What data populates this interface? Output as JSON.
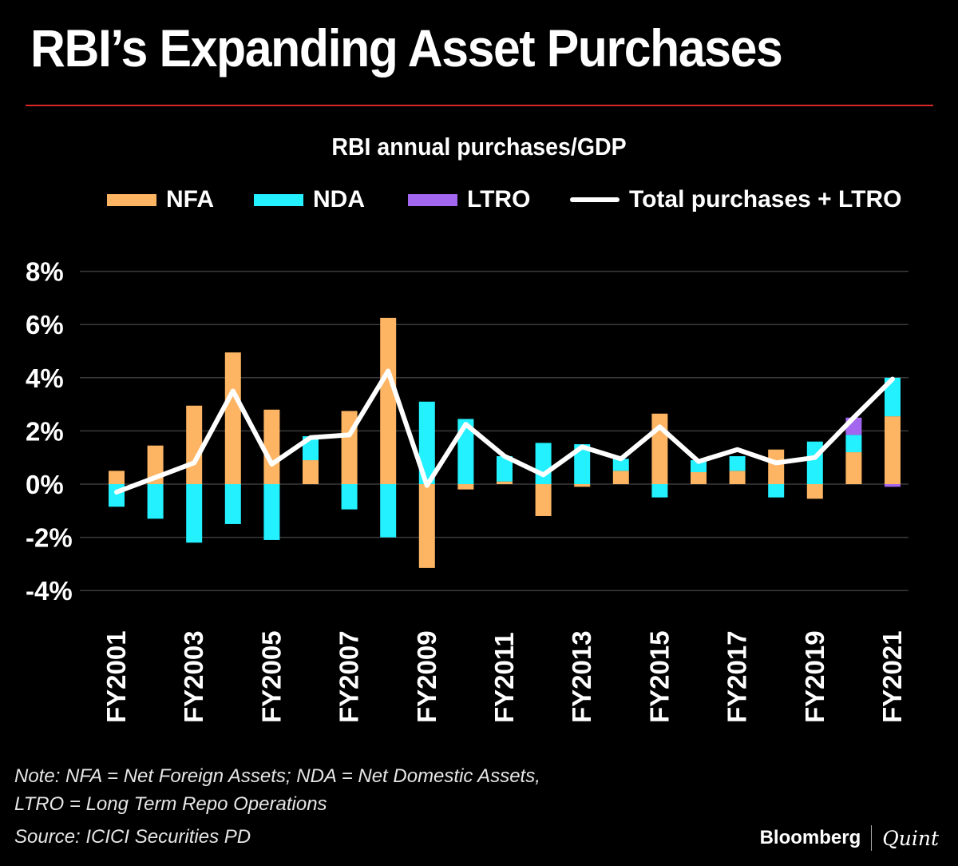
{
  "header": {
    "title": "RBI’s Expanding Asset Purchases"
  },
  "legend": {
    "nfa": "NFA",
    "nda": "NDA",
    "ltro": "LTRO",
    "total": "Total purchases + LTRO"
  },
  "colors": {
    "nfa": "#fdb563",
    "nda": "#23f1ff",
    "ltro": "#a366ee",
    "total": "#ffffff",
    "grid": "#3a3a3a",
    "accent_rule": "#d8262b"
  },
  "footer": {
    "note_line1": "Note: NFA = Net Foreign Assets; NDA = Net Domestic Assets,",
    "note_line2": "LTRO = Long Term Repo Operations",
    "source": "Source: ICICI Securities PD",
    "brand_a": "Bloomberg",
    "brand_b": "Quint"
  },
  "chart_data": {
    "type": "bar",
    "stacked": true,
    "title": "RBI annual purchases/GDP",
    "xlabel": "",
    "ylabel": "",
    "ylim": [
      -4,
      8
    ],
    "yticks": [
      8,
      6,
      4,
      2,
      0,
      -2,
      -4
    ],
    "ytick_labels": [
      "8%",
      "6%",
      "4%",
      "2%",
      "0%",
      "-2%",
      "-4%"
    ],
    "categories": [
      "FY2001",
      "FY2002",
      "FY2003",
      "FY2004",
      "FY2005",
      "FY2006",
      "FY2007",
      "FY2008",
      "FY2009",
      "FY2010",
      "FY2011",
      "FY2012",
      "FY2013",
      "FY2014",
      "FY2015",
      "FY2016",
      "FY2017",
      "FY2018",
      "FY2019",
      "FY2020",
      "FY2021"
    ],
    "xtick_labels": [
      "FY2001",
      "",
      "FY2003",
      "",
      "FY2005",
      "",
      "FY2007",
      "",
      "FY2009",
      "",
      "FY2011",
      "",
      "FY2013",
      "",
      "FY2015",
      "",
      "FY2017",
      "",
      "FY2019",
      "",
      "FY2021"
    ],
    "series": [
      {
        "name": "NFA",
        "values": [
          0.5,
          1.45,
          2.95,
          4.95,
          2.8,
          0.9,
          2.75,
          6.25,
          -3.15,
          -0.2,
          0.1,
          -1.2,
          -0.1,
          0.5,
          2.65,
          0.45,
          0.5,
          1.3,
          -0.55,
          1.2,
          2.55
        ]
      },
      {
        "name": "NDA",
        "values": [
          -0.85,
          -1.3,
          -2.2,
          -1.5,
          -2.1,
          0.9,
          -0.95,
          -2.0,
          3.1,
          2.45,
          0.95,
          1.55,
          1.5,
          0.45,
          -0.5,
          0.45,
          0.55,
          -0.5,
          1.6,
          0.65,
          1.45
        ]
      },
      {
        "name": "LTRO",
        "values": [
          0,
          0,
          0,
          0,
          0,
          0,
          0,
          0,
          0,
          0,
          0,
          0,
          0,
          0,
          0,
          0,
          0,
          0,
          0,
          0.65,
          -0.1
        ]
      },
      {
        "name": "Total purchases + LTRO",
        "type": "line",
        "values": [
          -0.3,
          0.25,
          0.8,
          3.5,
          0.75,
          1.75,
          1.85,
          4.25,
          -0.05,
          2.25,
          1.05,
          0.35,
          1.4,
          0.95,
          2.15,
          0.85,
          1.3,
          0.8,
          1.0,
          2.5,
          3.95
        ]
      }
    ]
  }
}
